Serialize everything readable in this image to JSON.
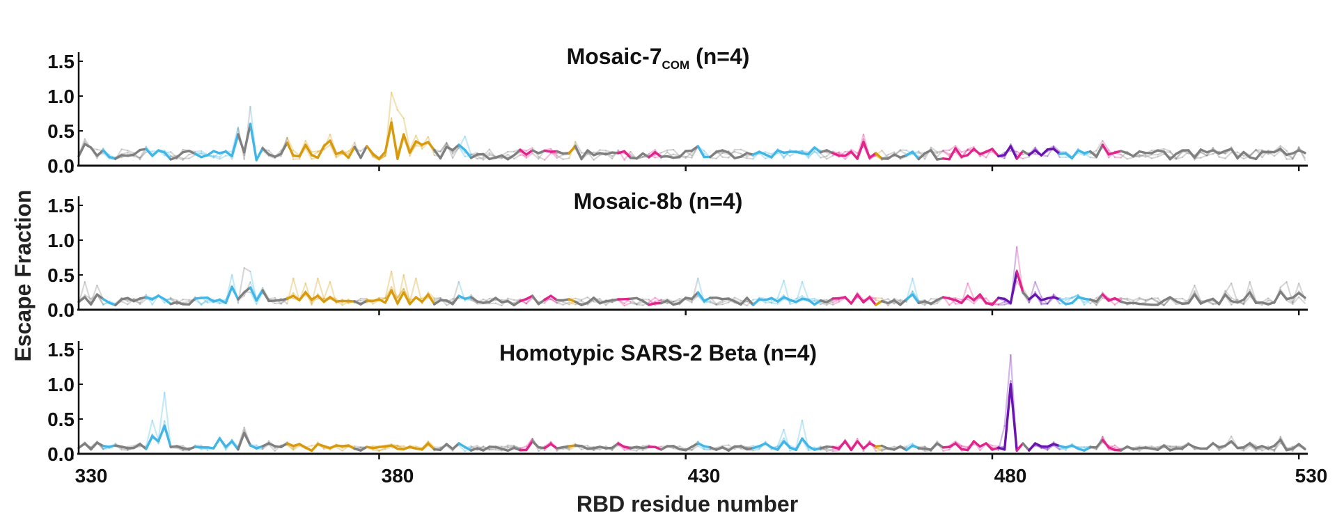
{
  "chart_data": {
    "type": "line",
    "ylabel": "Escape Fraction",
    "xlabel": "RBD residue number",
    "x_ticks": [
      330,
      380,
      430,
      480,
      530
    ],
    "xlim": [
      331,
      531
    ],
    "y_ticks": [
      "0.0",
      "0.5",
      "1.0",
      "1.5"
    ],
    "y_tick_values": [
      0,
      0.5,
      1.0,
      1.5
    ],
    "ylim": [
      0,
      1.6
    ],
    "color_map": {
      "grey": "#7f7f7f",
      "blue": "#41b6e6",
      "gold": "#d89a0c",
      "magenta": "#e0248b",
      "purple": "#6a14b0"
    },
    "segments": [
      {
        "start": 331,
        "end": 335,
        "color": "grey"
      },
      {
        "start": 335,
        "end": 337,
        "color": "blue"
      },
      {
        "start": 337,
        "end": 342,
        "color": "grey"
      },
      {
        "start": 342,
        "end": 346,
        "color": "blue"
      },
      {
        "start": 346,
        "end": 350,
        "color": "grey"
      },
      {
        "start": 350,
        "end": 357,
        "color": "blue"
      },
      {
        "start": 357,
        "end": 359,
        "color": "grey"
      },
      {
        "start": 359,
        "end": 361,
        "color": "blue"
      },
      {
        "start": 361,
        "end": 365,
        "color": "grey"
      },
      {
        "start": 365,
        "end": 376,
        "color": "gold"
      },
      {
        "start": 376,
        "end": 378,
        "color": "grey"
      },
      {
        "start": 378,
        "end": 389,
        "color": "gold"
      },
      {
        "start": 389,
        "end": 393,
        "color": "grey"
      },
      {
        "start": 393,
        "end": 395,
        "color": "blue"
      },
      {
        "start": 395,
        "end": 403,
        "color": "grey"
      },
      {
        "start": 403,
        "end": 405,
        "color": "magenta"
      },
      {
        "start": 405,
        "end": 407,
        "color": "grey"
      },
      {
        "start": 407,
        "end": 409,
        "color": "magenta"
      },
      {
        "start": 409,
        "end": 411,
        "color": "grey"
      },
      {
        "start": 411,
        "end": 412,
        "color": "gold"
      },
      {
        "start": 412,
        "end": 419,
        "color": "grey"
      },
      {
        "start": 419,
        "end": 421,
        "color": "magenta"
      },
      {
        "start": 421,
        "end": 424,
        "color": "grey"
      },
      {
        "start": 424,
        "end": 426,
        "color": "magenta"
      },
      {
        "start": 426,
        "end": 432,
        "color": "grey"
      },
      {
        "start": 432,
        "end": 434,
        "color": "blue"
      },
      {
        "start": 434,
        "end": 441,
        "color": "grey"
      },
      {
        "start": 441,
        "end": 452,
        "color": "blue"
      },
      {
        "start": 452,
        "end": 454,
        "color": "grey"
      },
      {
        "start": 454,
        "end": 461,
        "color": "magenta"
      },
      {
        "start": 461,
        "end": 462,
        "color": "gold"
      },
      {
        "start": 462,
        "end": 466,
        "color": "grey"
      },
      {
        "start": 466,
        "end": 468,
        "color": "blue"
      },
      {
        "start": 468,
        "end": 472,
        "color": "grey"
      },
      {
        "start": 472,
        "end": 481,
        "color": "magenta"
      },
      {
        "start": 481,
        "end": 484,
        "color": "purple"
      },
      {
        "start": 484,
        "end": 485,
        "color": "magenta"
      },
      {
        "start": 485,
        "end": 486,
        "color": "grey"
      },
      {
        "start": 486,
        "end": 491,
        "color": "purple"
      },
      {
        "start": 491,
        "end": 496,
        "color": "blue"
      },
      {
        "start": 496,
        "end": 498,
        "color": "grey"
      },
      {
        "start": 498,
        "end": 501,
        "color": "magenta"
      },
      {
        "start": 501,
        "end": 531,
        "color": "grey"
      }
    ],
    "panels": [
      {
        "title": "Mosaic-7",
        "title_sub": "COM",
        "title_suffix": " (n=4)",
        "baseline": 0.16,
        "mean_peaks": [
          {
            "x": 332,
            "y": 0.31
          },
          {
            "x": 333,
            "y": 0.26
          },
          {
            "x": 335,
            "y": 0.22
          },
          {
            "x": 337,
            "y": 0.1
          },
          {
            "x": 342,
            "y": 0.24
          },
          {
            "x": 344,
            "y": 0.22
          },
          {
            "x": 347,
            "y": 0.12
          },
          {
            "x": 350,
            "y": 0.17
          },
          {
            "x": 352,
            "y": 0.15
          },
          {
            "x": 357,
            "y": 0.45
          },
          {
            "x": 359,
            "y": 0.6
          },
          {
            "x": 360,
            "y": 0.08
          },
          {
            "x": 361,
            "y": 0.25
          },
          {
            "x": 365,
            "y": 0.33
          },
          {
            "x": 368,
            "y": 0.3
          },
          {
            "x": 371,
            "y": 0.28
          },
          {
            "x": 372,
            "y": 0.36
          },
          {
            "x": 374,
            "y": 0.2
          },
          {
            "x": 376,
            "y": 0.27
          },
          {
            "x": 378,
            "y": 0.28
          },
          {
            "x": 380,
            "y": 0.1
          },
          {
            "x": 382,
            "y": 0.62
          },
          {
            "x": 384,
            "y": 0.45
          },
          {
            "x": 386,
            "y": 0.35
          },
          {
            "x": 387,
            "y": 0.3
          },
          {
            "x": 388,
            "y": 0.34
          },
          {
            "x": 391,
            "y": 0.27
          },
          {
            "x": 393,
            "y": 0.3
          },
          {
            "x": 405,
            "y": 0.22
          },
          {
            "x": 408,
            "y": 0.2
          },
          {
            "x": 412,
            "y": 0.28
          },
          {
            "x": 414,
            "y": 0.22
          },
          {
            "x": 416,
            "y": 0.18
          },
          {
            "x": 419,
            "y": 0.18
          },
          {
            "x": 432,
            "y": 0.28
          },
          {
            "x": 442,
            "y": 0.2
          },
          {
            "x": 445,
            "y": 0.22
          },
          {
            "x": 448,
            "y": 0.2
          },
          {
            "x": 451,
            "y": 0.26
          },
          {
            "x": 454,
            "y": 0.18
          },
          {
            "x": 457,
            "y": 0.2
          },
          {
            "x": 459,
            "y": 0.34
          },
          {
            "x": 461,
            "y": 0.18
          },
          {
            "x": 464,
            "y": 0.16
          },
          {
            "x": 467,
            "y": 0.2
          },
          {
            "x": 470,
            "y": 0.22
          },
          {
            "x": 474,
            "y": 0.25
          },
          {
            "x": 477,
            "y": 0.24
          },
          {
            "x": 480,
            "y": 0.24
          },
          {
            "x": 483,
            "y": 0.28
          },
          {
            "x": 487,
            "y": 0.22
          },
          {
            "x": 490,
            "y": 0.24
          },
          {
            "x": 494,
            "y": 0.22
          },
          {
            "x": 498,
            "y": 0.3
          },
          {
            "x": 508,
            "y": 0.2
          },
          {
            "x": 512,
            "y": 0.22
          },
          {
            "x": 516,
            "y": 0.22
          },
          {
            "x": 519,
            "y": 0.24
          },
          {
            "x": 522,
            "y": 0.12
          },
          {
            "x": 527,
            "y": 0.24
          },
          {
            "x": 530,
            "y": 0.22
          }
        ],
        "replicate_peaks": [
          {
            "x": 359,
            "y": 0.85
          },
          {
            "x": 357,
            "y": 0.55
          },
          {
            "x": 382,
            "y": 1.05
          },
          {
            "x": 383,
            "y": 0.8
          },
          {
            "x": 384,
            "y": 0.68
          },
          {
            "x": 394,
            "y": 0.42
          },
          {
            "x": 459,
            "y": 0.45
          },
          {
            "x": 372,
            "y": 0.45
          },
          {
            "x": 365,
            "y": 0.4
          }
        ]
      },
      {
        "title": "Mosaic-8b",
        "title_sub": "",
        "title_suffix": " (n=4)",
        "baseline": 0.12,
        "mean_peaks": [
          {
            "x": 332,
            "y": 0.18
          },
          {
            "x": 334,
            "y": 0.22
          },
          {
            "x": 336,
            "y": 0.1
          },
          {
            "x": 338,
            "y": 0.15
          },
          {
            "x": 342,
            "y": 0.18
          },
          {
            "x": 344,
            "y": 0.2
          },
          {
            "x": 350,
            "y": 0.16
          },
          {
            "x": 353,
            "y": 0.12
          },
          {
            "x": 356,
            "y": 0.33
          },
          {
            "x": 358,
            "y": 0.25
          },
          {
            "x": 359,
            "y": 0.32
          },
          {
            "x": 361,
            "y": 0.28
          },
          {
            "x": 366,
            "y": 0.2
          },
          {
            "x": 368,
            "y": 0.25
          },
          {
            "x": 370,
            "y": 0.2
          },
          {
            "x": 372,
            "y": 0.18
          },
          {
            "x": 376,
            "y": 0.12
          },
          {
            "x": 380,
            "y": 0.15
          },
          {
            "x": 382,
            "y": 0.28
          },
          {
            "x": 384,
            "y": 0.25
          },
          {
            "x": 386,
            "y": 0.18
          },
          {
            "x": 388,
            "y": 0.22
          },
          {
            "x": 393,
            "y": 0.2
          },
          {
            "x": 395,
            "y": 0.18
          },
          {
            "x": 405,
            "y": 0.2
          },
          {
            "x": 408,
            "y": 0.2
          },
          {
            "x": 419,
            "y": 0.15
          },
          {
            "x": 432,
            "y": 0.25
          },
          {
            "x": 442,
            "y": 0.15
          },
          {
            "x": 446,
            "y": 0.18
          },
          {
            "x": 449,
            "y": 0.16
          },
          {
            "x": 456,
            "y": 0.18
          },
          {
            "x": 458,
            "y": 0.22
          },
          {
            "x": 460,
            "y": 0.18
          },
          {
            "x": 467,
            "y": 0.22
          },
          {
            "x": 472,
            "y": 0.18
          },
          {
            "x": 476,
            "y": 0.2
          },
          {
            "x": 478,
            "y": 0.22
          },
          {
            "x": 484,
            "y": 0.55
          },
          {
            "x": 485,
            "y": 0.25
          },
          {
            "x": 487,
            "y": 0.22
          },
          {
            "x": 490,
            "y": 0.18
          },
          {
            "x": 494,
            "y": 0.18
          },
          {
            "x": 498,
            "y": 0.22
          },
          {
            "x": 509,
            "y": 0.18
          },
          {
            "x": 513,
            "y": 0.22
          },
          {
            "x": 518,
            "y": 0.22
          },
          {
            "x": 522,
            "y": 0.25
          },
          {
            "x": 527,
            "y": 0.26
          },
          {
            "x": 530,
            "y": 0.24
          }
        ],
        "replicate_peaks": [
          {
            "x": 332,
            "y": 0.4
          },
          {
            "x": 334,
            "y": 0.35
          },
          {
            "x": 356,
            "y": 0.5
          },
          {
            "x": 358,
            "y": 0.6
          },
          {
            "x": 359,
            "y": 0.55
          },
          {
            "x": 366,
            "y": 0.45
          },
          {
            "x": 368,
            "y": 0.38
          },
          {
            "x": 370,
            "y": 0.45
          },
          {
            "x": 372,
            "y": 0.4
          },
          {
            "x": 382,
            "y": 0.55
          },
          {
            "x": 384,
            "y": 0.5
          },
          {
            "x": 386,
            "y": 0.45
          },
          {
            "x": 393,
            "y": 0.4
          },
          {
            "x": 432,
            "y": 0.45
          },
          {
            "x": 446,
            "y": 0.42
          },
          {
            "x": 449,
            "y": 0.4
          },
          {
            "x": 467,
            "y": 0.45
          },
          {
            "x": 476,
            "y": 0.38
          },
          {
            "x": 484,
            "y": 0.9
          },
          {
            "x": 487,
            "y": 0.4
          },
          {
            "x": 513,
            "y": 0.35
          },
          {
            "x": 519,
            "y": 0.38
          },
          {
            "x": 522,
            "y": 0.4
          },
          {
            "x": 528,
            "y": 0.4
          },
          {
            "x": 530,
            "y": 0.38
          }
        ]
      },
      {
        "title": "Homotypic SARS-2 Beta",
        "title_sub": "",
        "title_suffix": " (n=4)",
        "baseline": 0.08,
        "mean_peaks": [
          {
            "x": 332,
            "y": 0.15
          },
          {
            "x": 334,
            "y": 0.16
          },
          {
            "x": 336,
            "y": 0.1
          },
          {
            "x": 337,
            "y": 0.12
          },
          {
            "x": 341,
            "y": 0.14
          },
          {
            "x": 343,
            "y": 0.25
          },
          {
            "x": 344,
            "y": 0.18
          },
          {
            "x": 345,
            "y": 0.4
          },
          {
            "x": 346,
            "y": 0.1
          },
          {
            "x": 350,
            "y": 0.1
          },
          {
            "x": 354,
            "y": 0.22
          },
          {
            "x": 356,
            "y": 0.18
          },
          {
            "x": 358,
            "y": 0.3
          },
          {
            "x": 359,
            "y": 0.12
          },
          {
            "x": 362,
            "y": 0.15
          },
          {
            "x": 365,
            "y": 0.15
          },
          {
            "x": 367,
            "y": 0.14
          },
          {
            "x": 370,
            "y": 0.14
          },
          {
            "x": 373,
            "y": 0.12
          },
          {
            "x": 375,
            "y": 0.12
          },
          {
            "x": 378,
            "y": 0.1
          },
          {
            "x": 382,
            "y": 0.12
          },
          {
            "x": 385,
            "y": 0.1
          },
          {
            "x": 388,
            "y": 0.15
          },
          {
            "x": 391,
            "y": 0.14
          },
          {
            "x": 393,
            "y": 0.15
          },
          {
            "x": 405,
            "y": 0.18
          },
          {
            "x": 408,
            "y": 0.14
          },
          {
            "x": 412,
            "y": 0.12
          },
          {
            "x": 419,
            "y": 0.15
          },
          {
            "x": 424,
            "y": 0.1
          },
          {
            "x": 432,
            "y": 0.15
          },
          {
            "x": 443,
            "y": 0.15
          },
          {
            "x": 446,
            "y": 0.18
          },
          {
            "x": 449,
            "y": 0.22
          },
          {
            "x": 456,
            "y": 0.18
          },
          {
            "x": 458,
            "y": 0.18
          },
          {
            "x": 460,
            "y": 0.15
          },
          {
            "x": 467,
            "y": 0.12
          },
          {
            "x": 471,
            "y": 0.15
          },
          {
            "x": 474,
            "y": 0.15
          },
          {
            "x": 477,
            "y": 0.18
          },
          {
            "x": 479,
            "y": 0.15
          },
          {
            "x": 483,
            "y": 1.0
          },
          {
            "x": 485,
            "y": 0.15
          },
          {
            "x": 487,
            "y": 0.15
          },
          {
            "x": 490,
            "y": 0.14
          },
          {
            "x": 493,
            "y": 0.12
          },
          {
            "x": 498,
            "y": 0.2
          },
          {
            "x": 508,
            "y": 0.12
          },
          {
            "x": 512,
            "y": 0.14
          },
          {
            "x": 516,
            "y": 0.15
          },
          {
            "x": 519,
            "y": 0.18
          },
          {
            "x": 522,
            "y": 0.15
          },
          {
            "x": 527,
            "y": 0.2
          },
          {
            "x": 530,
            "y": 0.14
          }
        ],
        "replicate_peaks": [
          {
            "x": 343,
            "y": 0.48
          },
          {
            "x": 345,
            "y": 0.88
          },
          {
            "x": 358,
            "y": 0.38
          },
          {
            "x": 449,
            "y": 0.48
          },
          {
            "x": 446,
            "y": 0.35
          },
          {
            "x": 483,
            "y": 1.42
          },
          {
            "x": 482,
            "y": 0.4
          },
          {
            "x": 498,
            "y": 0.25
          },
          {
            "x": 519,
            "y": 0.25
          },
          {
            "x": 527,
            "y": 0.25
          }
        ]
      }
    ]
  }
}
